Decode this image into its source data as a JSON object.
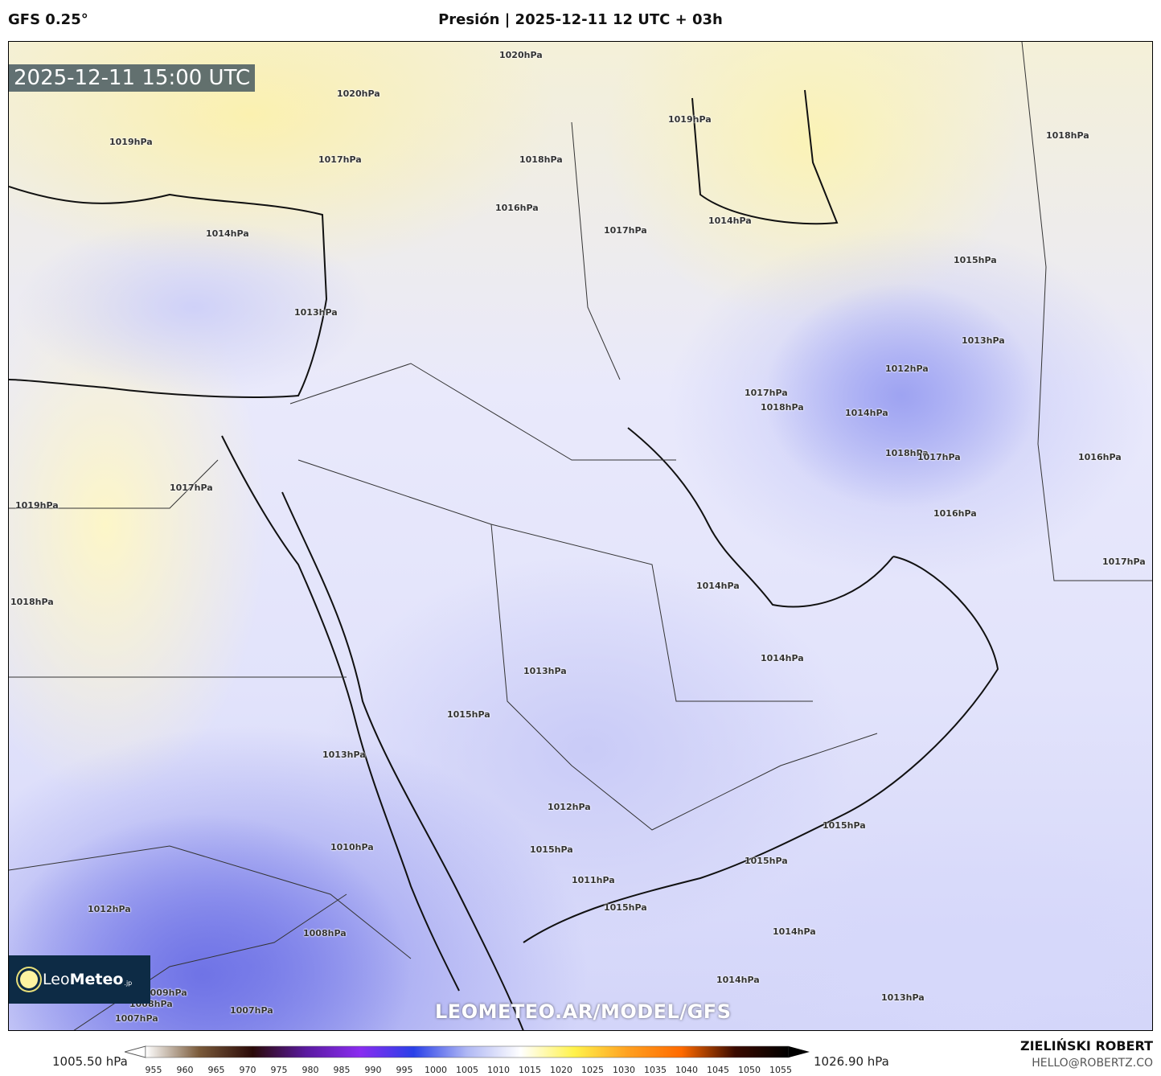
{
  "header": {
    "model": "GFS 0.25°",
    "title": "Presión | 2025-12-11 12 UTC + 03h"
  },
  "map": {
    "timestamp": "2025-12-11 15:00 UTC",
    "watermark": "LEOMETEO.AR/MODEL/GFS",
    "logo": {
      "text_light": "Leo",
      "text_bold": "Meteo",
      "suffix": ".jp"
    },
    "isobar_labels": [
      "1020hPa",
      "1019hPa",
      "1017hPa",
      "1014hPa",
      "1013hPa",
      "1016hPa",
      "1019hPa",
      "1018hPa",
      "1017hPa",
      "1014hPa",
      "1015hPa",
      "1013hPa",
      "1012hPa",
      "1014hPa",
      "1017hPa",
      "1018hPa",
      "1018hPa",
      "1017hPa",
      "1016hPa",
      "1016hPa",
      "1017hPa",
      "1017hPa",
      "1019hPa",
      "1018hPa",
      "1014hPa",
      "1014hPa",
      "1013hPa",
      "1015hPa",
      "1013hPa",
      "1012hPa",
      "1015hPa",
      "1011hPa",
      "1015hPa",
      "1015hPa",
      "1015hPa",
      "1010hPa",
      "1012hPa",
      "1008hPa",
      "1009hPa",
      "1008hPa",
      "1007hPa",
      "1007hPa",
      "1014hPa",
      "1014hPa",
      "1013hPa",
      "1020hPa",
      "1018hPa"
    ]
  },
  "colorbar": {
    "min_label": "1005.50 hPa",
    "max_label": "1026.90 hPa",
    "ticks": [
      "955",
      "960",
      "965",
      "970",
      "975",
      "980",
      "985",
      "990",
      "995",
      "1000",
      "1005",
      "1010",
      "1015",
      "1020",
      "1025",
      "1030",
      "1035",
      "1040",
      "1045",
      "1050",
      "1055"
    ],
    "colors": [
      "#ffffff",
      "#7a5a3a",
      "#2a0a08",
      "#5a1aa0",
      "#8a2cf0",
      "#2a40e8",
      "#b0b8f4",
      "#ffffff",
      "#fff24a",
      "#ffa020",
      "#ff6a00",
      "#3a0a00",
      "#000000"
    ]
  },
  "footer": {
    "author": "ZIELIŃSKI ROBERT",
    "email": "HELLO@ROBERTZ.CO"
  }
}
